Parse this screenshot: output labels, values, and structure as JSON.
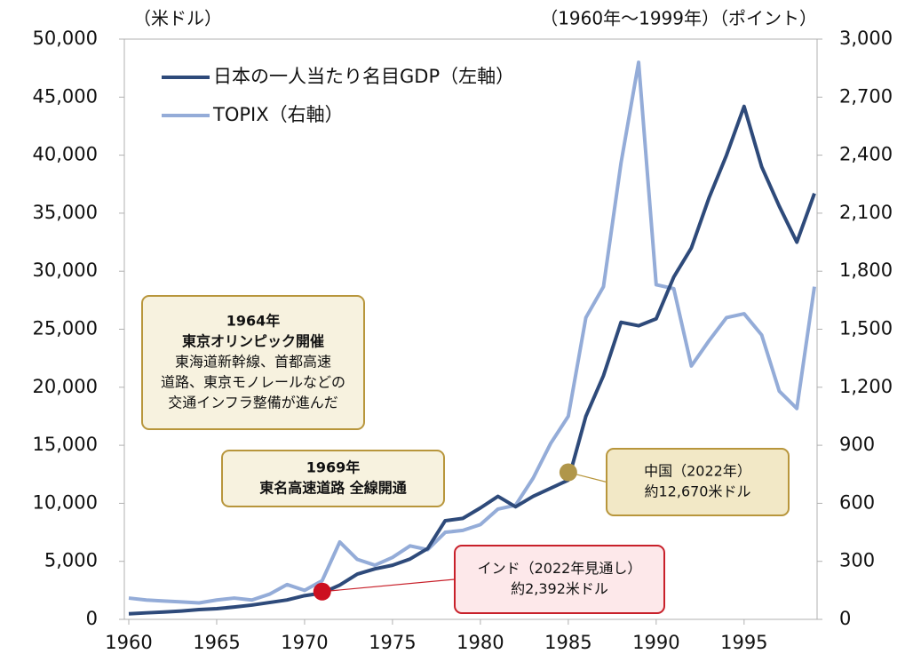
{
  "chart_data": {
    "type": "line",
    "ylabel": "（米ドル）",
    "y2label": "（1960年～1999年）（ポイント）",
    "x": [
      1960,
      1961,
      1962,
      1963,
      1964,
      1965,
      1966,
      1967,
      1968,
      1969,
      1970,
      1971,
      1972,
      1973,
      1974,
      1975,
      1976,
      1977,
      1978,
      1979,
      1980,
      1981,
      1982,
      1983,
      1984,
      1985,
      1986,
      1987,
      1988,
      1989,
      1990,
      1991,
      1992,
      1993,
      1994,
      1995,
      1996,
      1997,
      1998,
      1999
    ],
    "xlim": [
      1960,
      1999
    ],
    "xticks": [
      1960,
      1965,
      1970,
      1975,
      1980,
      1985,
      1990,
      1995
    ],
    "ylim": [
      0,
      50000
    ],
    "yticks": [
      0,
      {
        "value": 5000,
        "label": "5,000"
      },
      {
        "value": 10000,
        "label": "10,000"
      },
      {
        "value": 15000,
        "label": "15,000"
      },
      {
        "value": 20000,
        "label": "20,000"
      },
      {
        "value": 25000,
        "label": "25,000"
      },
      {
        "value": 30000,
        "label": "30,000"
      },
      {
        "value": 35000,
        "label": "35,000"
      },
      {
        "value": 40000,
        "label": "40,000"
      },
      {
        "value": 45000,
        "label": "45,000"
      },
      {
        "value": 50000,
        "label": "50,000"
      }
    ],
    "y2lim": [
      0,
      3000
    ],
    "y2ticks": [
      0,
      300,
      600,
      900,
      {
        "value": 1200,
        "label": "1,200"
      },
      {
        "value": 1500,
        "label": "1,500"
      },
      {
        "value": 1800,
        "label": "1,800"
      },
      {
        "value": 2100,
        "label": "2,100"
      },
      {
        "value": 2400,
        "label": "2,400"
      },
      {
        "value": 2700,
        "label": "2,700"
      },
      {
        "value": 3000,
        "label": "3,000"
      }
    ],
    "series": [
      {
        "name": "日本の一人当たり名目GDP（左軸）",
        "color": "#2e4a7a",
        "axis": "y",
        "values": [
          480,
          560,
          630,
          720,
          840,
          920,
          1060,
          1230,
          1450,
          1670,
          2040,
          2270,
          2950,
          3900,
          4350,
          4660,
          5200,
          6100,
          8500,
          8700,
          9600,
          10600,
          9700,
          10600,
          11300,
          12000,
          17500,
          21000,
          25600,
          25300,
          25900,
          29500,
          32000,
          36300,
          40000,
          44200,
          39000,
          35600,
          32500,
          36700
        ]
      },
      {
        "name": "TOPIX（右軸）",
        "color": "#94acd8",
        "axis": "y2",
        "values": [
          110,
          100,
          95,
          90,
          85,
          100,
          110,
          100,
          130,
          180,
          150,
          200,
          400,
          310,
          280,
          320,
          380,
          360,
          450,
          460,
          490,
          570,
          590,
          730,
          910,
          1050,
          1560,
          1720,
          2360,
          2880,
          1730,
          1710,
          1310,
          1440,
          1560,
          1580,
          1470,
          1180,
          1090,
          1720
        ]
      }
    ],
    "annotations": [
      {
        "lines": [
          "1964年",
          "東京オリンピック開催",
          "東海道新幹線、首都高速",
          "道路、東京モノレールなどの",
          "交通インフラ整備が進んだ"
        ]
      },
      {
        "lines": [
          "1969年",
          "東名高速道路 全線開通"
        ]
      },
      {
        "lines": [
          "中国（2022年）",
          "約12,670米ドル"
        ],
        "x": 1985,
        "y": 12670
      },
      {
        "lines": [
          "インド（2022年見通し）",
          "約2,392米ドル"
        ],
        "x": 1971,
        "y": 2392
      }
    ]
  }
}
